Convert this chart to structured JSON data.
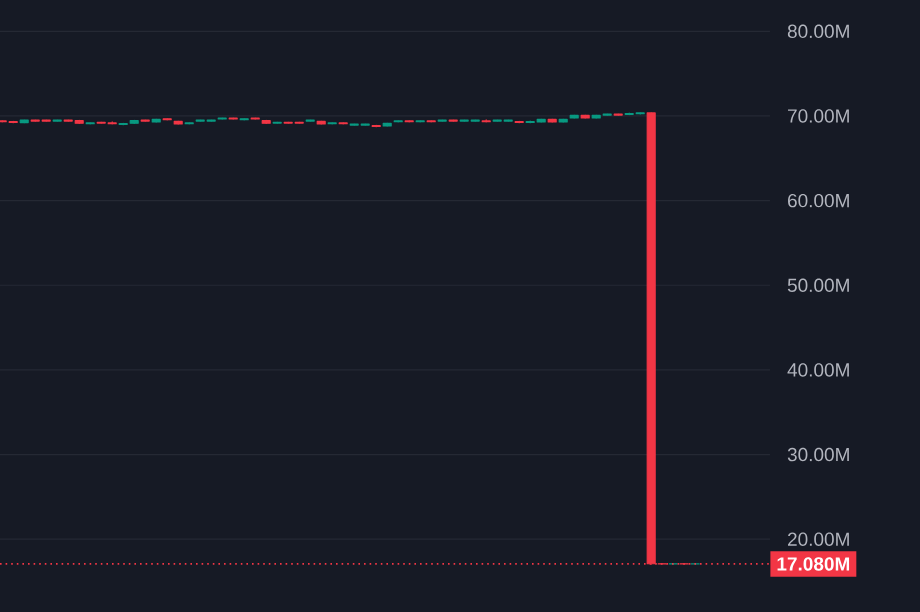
{
  "chart_data": {
    "type": "candlestick",
    "categories": [
      null,
      null,
      null,
      null,
      null,
      null,
      null,
      null,
      null,
      null,
      null,
      null,
      null,
      null,
      null,
      null,
      null,
      null,
      null,
      null,
      null,
      null,
      null,
      null,
      null,
      null,
      null,
      null,
      null,
      null,
      null,
      null,
      null,
      null,
      null,
      null,
      null,
      null,
      null,
      null,
      null,
      null,
      null,
      null,
      null,
      null,
      null,
      null,
      null,
      null,
      null,
      null,
      null,
      null,
      null,
      null,
      null,
      null,
      null,
      null,
      null,
      null,
      null,
      null
    ],
    "ohlc": [
      [
        69.42,
        69.45,
        69.29,
        69.32
      ],
      [
        69.34,
        69.37,
        69.21,
        69.24
      ],
      [
        69.22,
        69.55,
        69.19,
        69.52
      ],
      [
        69.5,
        69.53,
        69.37,
        69.4
      ],
      [
        69.5,
        69.53,
        69.37,
        69.4
      ],
      [
        69.4,
        69.53,
        69.37,
        69.5
      ],
      [
        69.5,
        69.53,
        69.37,
        69.4
      ],
      [
        69.44,
        69.47,
        69.11,
        69.14
      ],
      [
        69.08,
        69.21,
        69.05,
        69.18
      ],
      [
        69.26,
        69.29,
        69.13,
        69.16
      ],
      [
        69.18,
        69.3,
        69.05,
        69.08
      ],
      [
        69.0,
        69.13,
        68.97,
        69.1
      ],
      [
        69.14,
        69.47,
        69.11,
        69.44
      ],
      [
        69.5,
        69.53,
        69.37,
        69.4
      ],
      [
        69.3,
        69.63,
        69.27,
        69.6
      ],
      [
        69.66,
        69.69,
        69.53,
        69.56
      ],
      [
        69.36,
        69.39,
        69.03,
        69.06
      ],
      [
        69.08,
        69.21,
        69.05,
        69.18
      ],
      [
        69.4,
        69.53,
        69.37,
        69.5
      ],
      [
        69.4,
        69.53,
        69.37,
        69.5
      ],
      [
        69.64,
        69.77,
        69.61,
        69.74
      ],
      [
        69.74,
        69.77,
        69.61,
        69.64
      ],
      [
        69.56,
        69.69,
        69.53,
        69.66
      ],
      [
        69.74,
        69.77,
        69.61,
        69.64
      ],
      [
        69.44,
        69.47,
        69.11,
        69.14
      ],
      [
        69.16,
        69.29,
        69.13,
        69.26
      ],
      [
        69.26,
        69.29,
        69.13,
        69.16
      ],
      [
        69.26,
        69.29,
        69.13,
        69.16
      ],
      [
        69.4,
        69.53,
        69.37,
        69.5
      ],
      [
        69.36,
        69.39,
        69.03,
        69.06
      ],
      [
        69.08,
        69.21,
        69.05,
        69.18
      ],
      [
        69.18,
        69.21,
        69.05,
        69.08
      ],
      [
        68.93,
        69.06,
        68.9,
        69.03
      ],
      [
        68.93,
        69.06,
        68.9,
        69.03
      ],
      [
        68.87,
        68.9,
        68.74,
        68.77
      ],
      [
        68.83,
        69.16,
        68.8,
        69.13
      ],
      [
        69.32,
        69.45,
        69.29,
        69.42
      ],
      [
        69.42,
        69.45,
        69.29,
        69.32
      ],
      [
        69.32,
        69.45,
        69.29,
        69.42
      ],
      [
        69.42,
        69.45,
        69.29,
        69.32
      ],
      [
        69.4,
        69.53,
        69.37,
        69.5
      ],
      [
        69.5,
        69.53,
        69.37,
        69.4
      ],
      [
        69.4,
        69.53,
        69.37,
        69.5
      ],
      [
        69.4,
        69.53,
        69.37,
        69.5
      ],
      [
        69.42,
        69.55,
        69.29,
        69.32
      ],
      [
        69.4,
        69.53,
        69.37,
        69.5
      ],
      [
        69.4,
        69.53,
        69.37,
        69.5
      ],
      [
        69.34,
        69.37,
        69.21,
        69.24
      ],
      [
        69.24,
        69.4,
        69.21,
        69.34
      ],
      [
        69.3,
        69.63,
        69.27,
        69.6
      ],
      [
        69.6,
        69.63,
        69.27,
        69.3
      ],
      [
        69.3,
        69.63,
        69.27,
        69.6
      ],
      [
        69.77,
        70.1,
        69.74,
        70.07
      ],
      [
        70.07,
        70.1,
        69.74,
        69.77
      ],
      [
        69.77,
        70.1,
        69.74,
        70.07
      ],
      [
        70.11,
        70.24,
        70.08,
        70.21
      ],
      [
        70.21,
        70.24,
        70.08,
        70.11
      ],
      [
        70.19,
        70.35,
        70.16,
        70.29
      ],
      [
        70.26,
        70.39,
        70.23,
        70.36
      ],
      [
        70.36,
        70.39,
        17.05,
        17.1
      ],
      [
        17.1,
        17.13,
        17.06,
        17.08
      ],
      [
        17.08,
        17.12,
        17.05,
        17.1
      ],
      [
        17.1,
        17.12,
        17.05,
        17.08
      ],
      [
        17.08,
        17.1,
        17.06,
        17.08
      ]
    ],
    "colors": [
      "#f23645",
      "#f23645",
      "#089981",
      "#f23645",
      "#f23645",
      "#089981",
      "#f23645",
      "#f23645",
      "#089981",
      "#f23645",
      "#f23645",
      "#089981",
      "#089981",
      "#f23645",
      "#089981",
      "#f23645",
      "#f23645",
      "#089981",
      "#089981",
      "#089981",
      "#089981",
      "#f23645",
      "#089981",
      "#f23645",
      "#f23645",
      "#089981",
      "#f23645",
      "#f23645",
      "#089981",
      "#f23645",
      "#089981",
      "#f23645",
      "#089981",
      "#089981",
      "#f23645",
      "#089981",
      "#089981",
      "#f23645",
      "#089981",
      "#f23645",
      "#089981",
      "#f23645",
      "#089981",
      "#089981",
      "#f23645",
      "#089981",
      "#089981",
      "#f23645",
      "#089981",
      "#089981",
      "#f23645",
      "#089981",
      "#089981",
      "#f23645",
      "#089981",
      "#089981",
      "#f23645",
      "#089981",
      "#089981",
      "#f23645",
      "#f23645",
      "#089981",
      "#f23645",
      "#089981"
    ],
    "ylim": [
      11.4,
      83.7
    ],
    "yticks": [
      {
        "value": 20,
        "label": "20.00M"
      },
      {
        "value": 30,
        "label": "30.00M"
      },
      {
        "value": 40,
        "label": "40.00M"
      },
      {
        "value": 50,
        "label": "50.00M"
      },
      {
        "value": 60,
        "label": "60.00M"
      },
      {
        "value": 70,
        "label": "70.00M"
      },
      {
        "value": 80,
        "label": "80.00M"
      }
    ],
    "grid": "y",
    "tick_labels": "y",
    "ref_lines": [
      {
        "axis": "y",
        "value": 17.08,
        "label": "17.080M",
        "color": "#f23645",
        "line_style": "dotted"
      }
    ]
  }
}
